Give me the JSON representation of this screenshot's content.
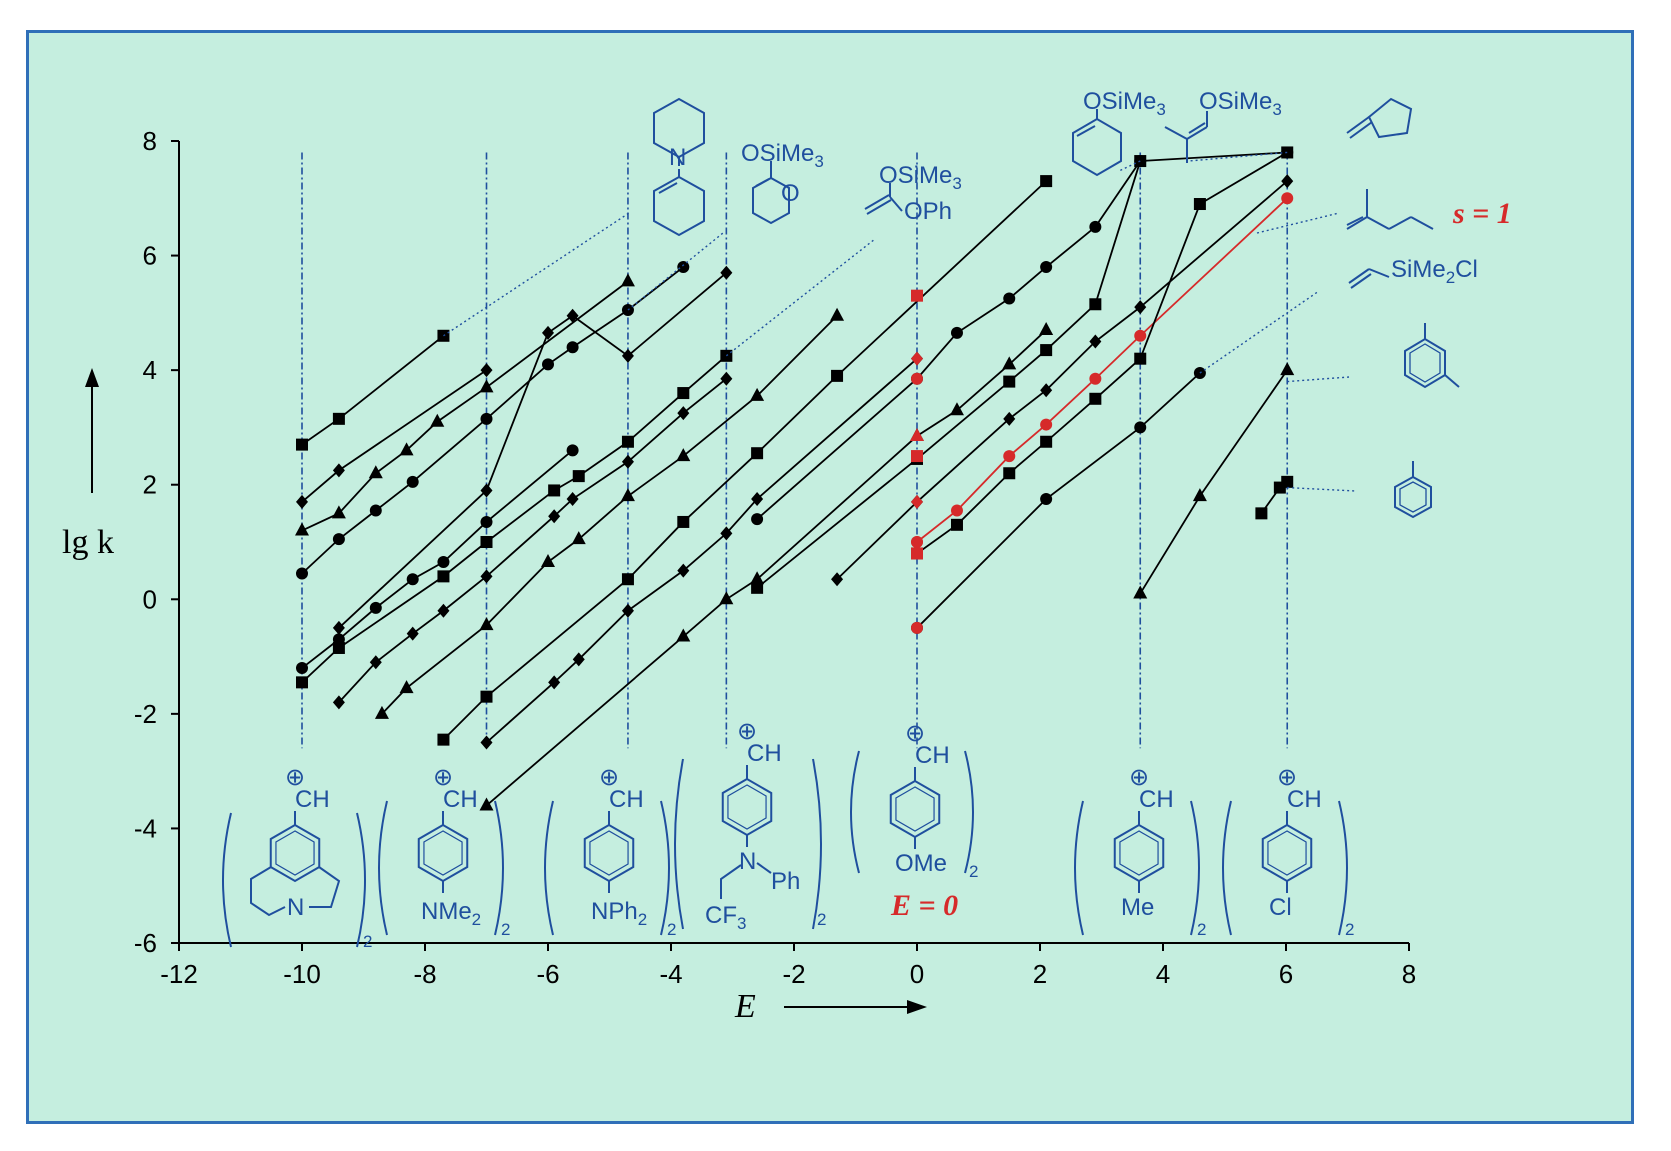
{
  "chart_data": {
    "type": "line",
    "title": "",
    "xlabel": "E",
    "ylabel": "lg k",
    "xlim": [
      -12,
      8
    ],
    "ylim": [
      -6,
      8
    ],
    "xticks": [
      -12,
      -10,
      -8,
      -6,
      -4,
      -2,
      0,
      2,
      4,
      6,
      8
    ],
    "yticks": [
      -6,
      -4,
      -2,
      0,
      2,
      4,
      6,
      8
    ],
    "reference_E": [
      -10.0,
      -7.0,
      -4.7,
      -3.1,
      0.0,
      3.63,
      6.02
    ],
    "series": [
      {
        "name": "s1",
        "marker": "square",
        "color": "#000000",
        "x": [
          -10.0,
          -9.4,
          -7.7
        ],
        "y": [
          2.7,
          3.15,
          4.6
        ]
      },
      {
        "name": "s2",
        "marker": "diamond",
        "color": "#000000",
        "x": [
          -10.0,
          -9.4,
          -7.0
        ],
        "y": [
          1.7,
          2.25,
          4.0
        ]
      },
      {
        "name": "s3",
        "marker": "triangle",
        "color": "#000000",
        "x": [
          -10.0,
          -9.4,
          -8.8,
          -8.3,
          -7.8,
          -7.0,
          -4.7
        ],
        "y": [
          1.2,
          1.5,
          2.2,
          2.6,
          3.1,
          3.7,
          5.55
        ]
      },
      {
        "name": "s4",
        "marker": "circle",
        "color": "#000000",
        "x": [
          -10.0,
          -9.4,
          -8.8,
          -8.2,
          -7.0,
          -6.0,
          -5.6,
          -4.7,
          -3.8
        ],
        "y": [
          0.45,
          1.05,
          1.55,
          2.05,
          3.15,
          4.1,
          4.4,
          5.05,
          5.8
        ]
      },
      {
        "name": "s5",
        "marker": "diamond",
        "color": "#000000",
        "x": [
          -9.4,
          -7.0,
          -6.0,
          -5.6,
          -4.7,
          -3.1
        ],
        "y": [
          -0.5,
          1.9,
          4.65,
          4.95,
          4.25,
          5.7
        ]
      },
      {
        "name": "s6",
        "marker": "circle",
        "color": "#000000",
        "x": [
          -10.0,
          -9.4,
          -8.8,
          -8.2,
          -7.7,
          -7.0,
          -5.6
        ],
        "y": [
          -1.2,
          -0.7,
          -0.15,
          0.35,
          0.65,
          1.35,
          2.6
        ]
      },
      {
        "name": "s7",
        "marker": "diamond",
        "color": "#000000",
        "x": [
          -9.4,
          -8.8,
          -8.2,
          -7.7,
          -7.0,
          -5.9,
          -5.6,
          -4.7,
          -3.8,
          -3.1
        ],
        "y": [
          -1.8,
          -1.1,
          -0.6,
          -0.2,
          0.4,
          1.45,
          1.75,
          2.4,
          3.25,
          3.85
        ]
      },
      {
        "name": "s8",
        "marker": "square",
        "color": "#000000",
        "x": [
          -10.0,
          -9.4,
          -7.7,
          -7.0,
          -5.9,
          -5.5,
          -4.7,
          -3.8,
          -3.1
        ],
        "y": [
          -1.45,
          -0.85,
          0.4,
          1.0,
          1.9,
          2.15,
          2.75,
          3.6,
          4.25
        ]
      },
      {
        "name": "s9",
        "marker": "triangle",
        "color": "#000000",
        "x": [
          -8.7,
          -8.3,
          -7.0,
          -6.0,
          -5.5,
          -4.7,
          -3.8,
          -2.6,
          -1.3
        ],
        "y": [
          -2.0,
          -1.55,
          -0.45,
          0.65,
          1.05,
          1.8,
          2.5,
          3.55,
          4.95
        ]
      },
      {
        "name": "s10",
        "marker": "square",
        "color": "#000000",
        "x": [
          -7.7,
          -7.0,
          -4.7,
          -3.8,
          -2.6,
          -1.3,
          2.1
        ],
        "y": [
          -2.45,
          -1.7,
          0.35,
          1.35,
          2.55,
          3.9,
          7.3
        ]
      },
      {
        "name": "s11",
        "marker": "diamond",
        "color": "#000000",
        "x": [
          -7.0,
          -5.9,
          -5.5,
          -4.7,
          -3.8,
          -3.1,
          -2.6,
          0.0
        ],
        "y": [
          -2.5,
          -1.45,
          -1.05,
          -0.2,
          0.5,
          1.15,
          1.75,
          4.2
        ]
      },
      {
        "name": "s12",
        "marker": "triangle",
        "color": "#000000",
        "x": [
          -7.0,
          -3.8,
          -3.1,
          -2.6,
          0.0,
          0.65,
          1.5,
          2.1
        ],
        "y": [
          -3.6,
          -0.65,
          0.0,
          0.35,
          2.85,
          3.3,
          4.1,
          4.7
        ]
      },
      {
        "name": "s13",
        "marker": "square",
        "color": "#000000",
        "x": [
          -2.6,
          0.0,
          1.5,
          2.1,
          2.9,
          3.63
        ],
        "y": [
          0.2,
          2.45,
          3.8,
          4.35,
          5.15,
          7.65
        ]
      },
      {
        "name": "s14",
        "marker": "circle",
        "color": "#000000",
        "x": [
          -2.6,
          0.0,
          0.65,
          1.5,
          2.1,
          2.9,
          3.63,
          6.02
        ],
        "y": [
          1.4,
          3.85,
          4.65,
          5.25,
          5.8,
          6.5,
          7.65,
          7.8
        ]
      },
      {
        "name": "s15",
        "marker": "diamond",
        "color": "#000000",
        "x": [
          -1.3,
          0.0,
          1.5,
          2.1,
          2.9,
          3.63,
          6.02
        ],
        "y": [
          0.35,
          1.7,
          3.15,
          3.65,
          4.5,
          5.1,
          7.3
        ]
      },
      {
        "name": "s16",
        "marker": "circle",
        "color": "#d62a2a",
        "x": [
          0.0,
          0.65,
          1.5,
          2.1,
          2.9,
          3.63,
          6.02
        ],
        "y": [
          1.0,
          1.55,
          2.5,
          3.05,
          3.85,
          4.6,
          7.0
        ],
        "note": "s = 1"
      },
      {
        "name": "s17",
        "marker": "square",
        "color": "#000000",
        "x": [
          0.0,
          0.65,
          1.5,
          2.1,
          2.9,
          3.63,
          4.6,
          6.02
        ],
        "y": [
          0.8,
          1.3,
          2.2,
          2.75,
          3.5,
          4.2,
          6.9,
          7.8
        ]
      },
      {
        "name": "s18",
        "marker": "circle",
        "color": "#000000",
        "x": [
          0.0,
          2.1,
          3.63,
          4.6
        ],
        "y": [
          -0.5,
          1.75,
          3.0,
          3.95
        ]
      },
      {
        "name": "s19",
        "marker": "triangle",
        "color": "#000000",
        "x": [
          3.63,
          4.6,
          6.02
        ],
        "y": [
          0.1,
          1.8,
          4.0
        ]
      },
      {
        "name": "s20",
        "marker": "square",
        "color": "#000000",
        "x": [
          5.6,
          5.9,
          6.02
        ],
        "y": [
          1.5,
          1.95,
          2.05
        ]
      }
    ],
    "red_points": [
      {
        "marker": "square",
        "x": 0.0,
        "y": 5.3
      },
      {
        "marker": "diamond",
        "x": 0.0,
        "y": 4.2
      },
      {
        "marker": "circle",
        "x": 0.0,
        "y": 3.85
      },
      {
        "marker": "triangle",
        "x": 0.0,
        "y": 2.85
      },
      {
        "marker": "square",
        "x": 0.0,
        "y": 2.5
      },
      {
        "marker": "diamond",
        "x": 0.0,
        "y": 1.7
      },
      {
        "marker": "circle",
        "x": 0.0,
        "y": 1.0
      },
      {
        "marker": "square",
        "x": 0.0,
        "y": 0.8
      },
      {
        "marker": "circle",
        "x": 0.0,
        "y": -0.5
      }
    ],
    "annotations": {
      "s_label": "s = 1",
      "e_label": "E = 0"
    }
  },
  "labels": {
    "plus": "⊕",
    "ch": "CH",
    "osime3": "OSiMe",
    "sub3": "3",
    "sub2": "2",
    "ophen": "OPh",
    "n": "N",
    "o": "O",
    "nme": "NMe",
    "nph": "NPh",
    "ph": "Ph",
    "cf": "CF",
    "ome": "OMe",
    "me": "Me",
    "cl": "Cl",
    "sime2cl": "SiMe",
    "sime2cl_tail": "Cl"
  }
}
